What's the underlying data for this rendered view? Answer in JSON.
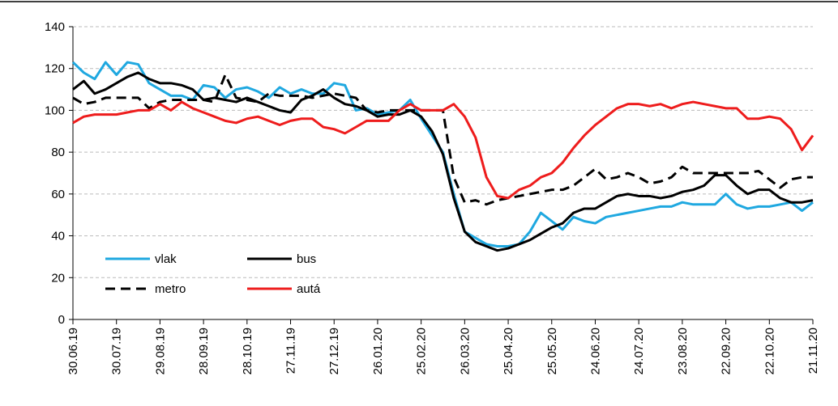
{
  "chart_data": {
    "type": "line",
    "categories": [
      "30.06.19",
      null,
      null,
      null,
      "30.07.19",
      null,
      null,
      null,
      "29.08.19",
      null,
      null,
      null,
      "28.09.19",
      null,
      null,
      null,
      "28.10.19",
      null,
      null,
      null,
      "27.11.19",
      null,
      null,
      null,
      "27.12.19",
      null,
      null,
      null,
      "26.01.20",
      null,
      null,
      null,
      "25.02.20",
      null,
      null,
      null,
      "26.03.20",
      null,
      null,
      null,
      "25.04.20",
      null,
      null,
      null,
      "25.05.20",
      null,
      null,
      null,
      "24.06.20",
      null,
      null,
      null,
      "24.07.20",
      null,
      null,
      null,
      "23.08.20",
      null,
      null,
      null,
      "22.09.20",
      null,
      null,
      null,
      "22.10.20",
      null,
      null,
      null,
      "21.11.20"
    ],
    "series": [
      {
        "name": "vlak",
        "color": "#1fa8e0",
        "style": "solid",
        "values": [
          123,
          118,
          115,
          123,
          117,
          123,
          122,
          113,
          110,
          107,
          107,
          105,
          112,
          111,
          106,
          110,
          111,
          109,
          106,
          111,
          108,
          110,
          108,
          108,
          113,
          112,
          100,
          101,
          98,
          99,
          100,
          105,
          96,
          88,
          80,
          60,
          42,
          39,
          36,
          35,
          35,
          36,
          42,
          51,
          47,
          43,
          49,
          47,
          46,
          49,
          50,
          51,
          52,
          53,
          54,
          54,
          56,
          55,
          55,
          55,
          60,
          55,
          53,
          54,
          54,
          55,
          56,
          52,
          56
        ]
      },
      {
        "name": "bus",
        "color": "#000000",
        "style": "solid",
        "values": [
          110,
          114,
          108,
          110,
          113,
          116,
          118,
          115,
          113,
          113,
          112,
          110,
          105,
          106,
          105,
          104,
          106,
          104,
          102,
          100,
          99,
          105,
          107,
          110,
          106,
          103,
          102,
          100,
          97,
          98,
          98,
          100,
          97,
          90,
          79,
          58,
          42,
          37,
          35,
          33,
          34,
          36,
          38,
          41,
          44,
          46,
          51,
          53,
          53,
          56,
          59,
          60,
          59,
          59,
          58,
          59,
          61,
          62,
          64,
          69,
          69,
          64,
          60,
          62,
          62,
          58,
          56,
          56,
          57
        ]
      },
      {
        "name": "metro",
        "color": "#000000",
        "style": "dashed",
        "values": [
          106,
          103,
          104,
          106,
          106,
          106,
          106,
          101,
          104,
          105,
          105,
          105,
          105,
          104,
          117,
          106,
          105,
          104,
          108,
          107,
          107,
          107,
          106,
          107,
          108,
          107,
          106,
          100,
          99,
          100,
          100,
          100,
          100,
          100,
          100,
          68,
          56,
          57,
          55,
          57,
          58,
          59,
          60,
          61,
          62,
          62,
          64,
          68,
          72,
          67,
          68,
          70,
          68,
          65,
          66,
          68,
          73,
          70,
          70,
          70,
          70,
          70,
          70,
          71,
          67,
          63,
          67,
          68,
          68
        ]
      },
      {
        "name": "autá",
        "color": "#ee1c1c",
        "style": "solid",
        "values": [
          94,
          97,
          98,
          98,
          98,
          99,
          100,
          100,
          103,
          100,
          104,
          101,
          99,
          97,
          95,
          94,
          96,
          97,
          95,
          93,
          95,
          96,
          96,
          92,
          91,
          89,
          92,
          95,
          95,
          95,
          100,
          103,
          100,
          100,
          100,
          103,
          97,
          87,
          68,
          59,
          58,
          62,
          64,
          68,
          70,
          75,
          82,
          88,
          93,
          97,
          101,
          103,
          103,
          102,
          103,
          101,
          103,
          104,
          103,
          102,
          101,
          101,
          96,
          96,
          97,
          96,
          91,
          81,
          88
        ]
      }
    ],
    "ylim": [
      0,
      140
    ],
    "yticks": [
      0,
      20,
      40,
      60,
      80,
      100,
      120,
      140
    ],
    "grid": true,
    "legend": "lower left"
  }
}
